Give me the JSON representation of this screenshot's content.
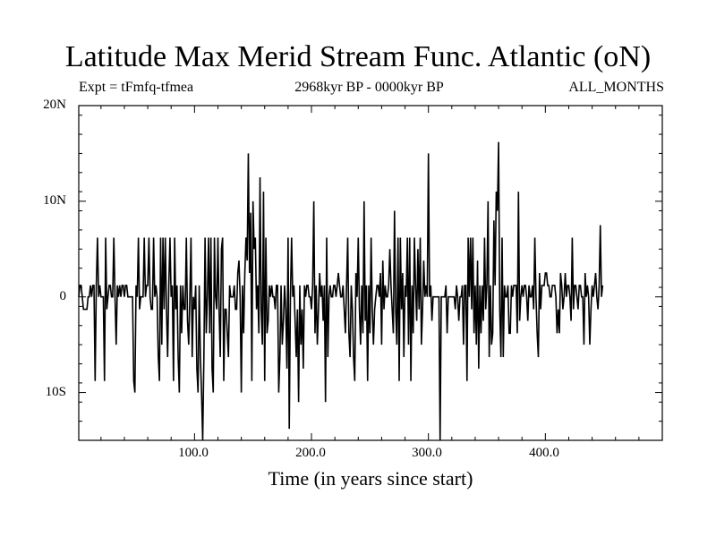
{
  "chart_data": {
    "type": "line",
    "title": "Latitude Max Merid Stream Func. Atlantic (oN)",
    "subtitle_left": "Expt = tFmfq-tfmea",
    "subtitle_center": "2968kyr BP - 0000kyr BP",
    "subtitle_right": "ALL_MONTHS",
    "xlabel": "Time (in years since start)",
    "ylabel": "",
    "xlim": [
      1,
      500
    ],
    "ylim": [
      -15,
      20
    ],
    "x_ticks": [
      {
        "value": 100,
        "label": "100.0"
      },
      {
        "value": 200,
        "label": "200.0"
      },
      {
        "value": 300,
        "label": "300.0"
      },
      {
        "value": 400,
        "label": "400.0"
      }
    ],
    "y_ticks": [
      {
        "value": 20,
        "label": "20N"
      },
      {
        "value": 10,
        "label": "10N"
      },
      {
        "value": 0,
        "label": "0"
      },
      {
        "value": -10,
        "label": "10S"
      }
    ],
    "grid": false,
    "series": [
      {
        "color": "#000000",
        "x_start": 1,
        "x_step": 1,
        "values": [
          0,
          1.2,
          1.2,
          0,
          -1.3,
          -1.3,
          -1.3,
          -1.3,
          0,
          0,
          1.2,
          0,
          1.2,
          1.2,
          -8.8,
          1.2,
          6.2,
          0,
          1.2,
          0,
          0,
          0,
          -8.8,
          6.2,
          -1.3,
          0,
          1.2,
          1.2,
          0,
          0,
          6.2,
          0,
          -5,
          1.2,
          0,
          1.2,
          0,
          1.2,
          1.2,
          0,
          1.2,
          1.2,
          0,
          0,
          0,
          0,
          0,
          -8.8,
          -10,
          1.2,
          0,
          6.2,
          -1.3,
          0,
          0,
          0,
          6.2,
          0,
          1.2,
          1.2,
          6.2,
          0,
          -1.3,
          -1.3,
          6.2,
          0,
          1.2,
          0,
          -6.3,
          -8.8,
          6.2,
          -5,
          6.2,
          -1.3,
          6.2,
          -1.3,
          -6.3,
          1.2,
          6.2,
          0,
          1.2,
          -8.8,
          6.2,
          -1.3,
          1.2,
          -6.3,
          -10,
          1.2,
          -3.8,
          1.2,
          -1.3,
          -1.3,
          6.2,
          -2.5,
          -5,
          0,
          6.2,
          -6.3,
          0,
          -1.3,
          1.2,
          -7.5,
          -10,
          1.2,
          -6.3,
          -10,
          -15,
          -6.3,
          6.2,
          -3.8,
          0,
          6.2,
          -3.8,
          6.2,
          -7.5,
          -10,
          6.2,
          0,
          -1.3,
          6.2,
          -1.3,
          -6.3,
          5,
          6.2,
          -8.8,
          -1.3,
          -1.3,
          -3.8,
          -6.3,
          1.2,
          0,
          0,
          0,
          1.2,
          -1.3,
          -1.3,
          2.5,
          3.8,
          0,
          -10,
          1.2,
          -3.8,
          2.5,
          6.2,
          3.8,
          15,
          2.5,
          8.8,
          -8.8,
          10,
          5,
          6.2,
          -1.3,
          1.2,
          -3.8,
          12.5,
          -1.3,
          -5,
          11,
          -8.8,
          6.2,
          -3.8,
          -2.5,
          1.2,
          0,
          1.2,
          0,
          0,
          -1.3,
          1.2,
          1.2,
          -10,
          -6.3,
          1.2,
          -5,
          -2.5,
          1.2,
          -1.3,
          -7.5,
          6.2,
          -13.8,
          0,
          6.2,
          0,
          1.2,
          -2.5,
          -6.3,
          -1.3,
          -11,
          1.2,
          -5,
          -1.3,
          -7.5,
          1.2,
          0,
          1.2,
          1.2,
          0,
          0,
          -1.3,
          1.2,
          10,
          -3.8,
          1.2,
          -5,
          -1.3,
          2.5,
          0,
          1.2,
          -2.5,
          1.2,
          -11,
          6.2,
          -6.3,
          0,
          1.2,
          0,
          0,
          1.2,
          1.2,
          0,
          1.2,
          2.5,
          1.2,
          0,
          0,
          1.2,
          -1.3,
          -3.8,
          1.2,
          6.2,
          -3.8,
          -6.3,
          1.2,
          -1.3,
          -6.3,
          -8.8,
          2.5,
          0,
          6.2,
          -1.3,
          -5,
          1.2,
          -3.8,
          10,
          -2.5,
          1.2,
          -8.8,
          1.2,
          -3.8,
          6.2,
          -1.3,
          -5,
          -1.3,
          0,
          1.2,
          1.2,
          0,
          2.5,
          -5,
          3.8,
          -1.3,
          1.2,
          0,
          0,
          1.2,
          5,
          1.2,
          -1.3,
          -3.8,
          9,
          -1.3,
          -5,
          6.2,
          -8.8,
          6.2,
          -1.3,
          2.5,
          -6.3,
          1.2,
          0,
          6.2,
          -5,
          6.2,
          -8.8,
          1.2,
          -3.8,
          6.2,
          1.2,
          -2.5,
          5,
          -1.3,
          6.2,
          -5,
          -1.3,
          3.8,
          0,
          1.2,
          0,
          15,
          0,
          1.2,
          -2.5,
          0,
          0,
          0,
          0,
          0,
          0,
          -15,
          0,
          0,
          0,
          0,
          1.2,
          -3.8,
          0,
          0,
          0,
          0,
          0,
          0,
          -1.3,
          1.2,
          0,
          -2.5,
          0,
          0,
          1.2,
          -5,
          1.2,
          1.2,
          -8.8,
          6.2,
          0,
          6.2,
          -1.3,
          6.2,
          -3.8,
          1.2,
          -5,
          3.8,
          -7.5,
          1.2,
          -3.8,
          1.2,
          -2.5,
          6.2,
          -1.3,
          1.2,
          10,
          -6.3,
          1.2,
          -5,
          -3.8,
          8,
          1.2,
          11,
          9,
          16.2,
          -1.3,
          -6.3,
          6.2,
          -6.3,
          1.2,
          0,
          0,
          1.2,
          -3.8,
          -3.8,
          1.2,
          0,
          1.2,
          1.2,
          1.2,
          -3.8,
          11,
          -2.5,
          0,
          1.2,
          0,
          1.2,
          1.2,
          0,
          -2.5,
          1.2,
          0,
          0,
          1.2,
          -1.3,
          6.2,
          0,
          -3.8,
          -6.3,
          2.5,
          -1.3,
          1.2,
          1.2,
          1.2,
          2.5,
          2.5,
          1.2,
          1.2,
          0,
          0,
          1.2,
          1.2,
          1.2,
          0,
          -3.8,
          -1.3,
          -3.8,
          2.5,
          1.2,
          -1.3,
          0,
          2.5,
          0,
          1.2,
          1.2,
          0,
          -2.5,
          6.2,
          -1.3,
          1.2,
          1.2,
          0,
          -1.3,
          1.2,
          1.2,
          0,
          0,
          -5,
          2.5,
          0,
          1.2,
          0,
          -5,
          -1.3,
          1.2,
          0,
          1.2,
          2.5,
          0,
          -1.3,
          1.2,
          7.5,
          0,
          1.2
        ]
      }
    ]
  }
}
